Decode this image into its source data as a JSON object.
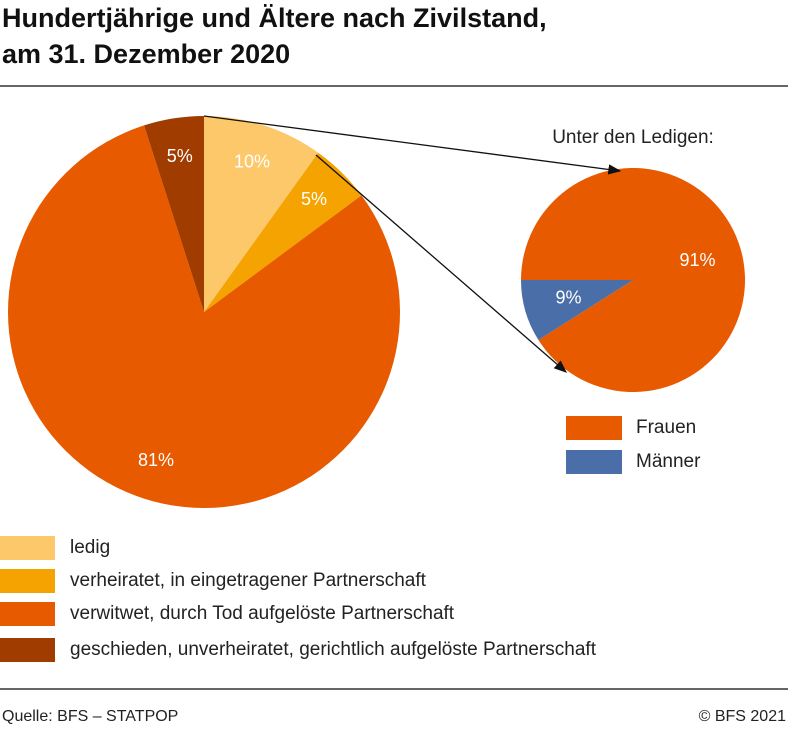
{
  "title": [
    "Hundertjährige und Ältere nach Zivilstand,",
    "am 31. Dezember 2020"
  ],
  "source": "Quelle: BFS – STATPOP",
  "copyright": "© BFS 2021",
  "chart_data": [
    {
      "type": "pie",
      "categories": [
        "ledig",
        "verheiratet, in eingetragener Partnerschaft",
        "verwitwet, durch Tod aufgelöste Partnerschaft",
        "geschieden, unverheiratet, gerichtlich aufgelöste Partnerschaft"
      ],
      "values": [
        10,
        5,
        81,
        5
      ],
      "value_labels": [
        "10%",
        "5%",
        "81%",
        "5%"
      ],
      "colors": [
        "#fdc86a",
        "#f5a300",
        "#e85a00",
        "#a03c00"
      ]
    },
    {
      "type": "pie",
      "title": "Unter den Ledigen:",
      "categories": [
        "Frauen",
        "Männer"
      ],
      "values": [
        91,
        9
      ],
      "value_labels": [
        "91%",
        "9%"
      ],
      "colors": [
        "#e85a00",
        "#4a6ea8"
      ]
    }
  ]
}
